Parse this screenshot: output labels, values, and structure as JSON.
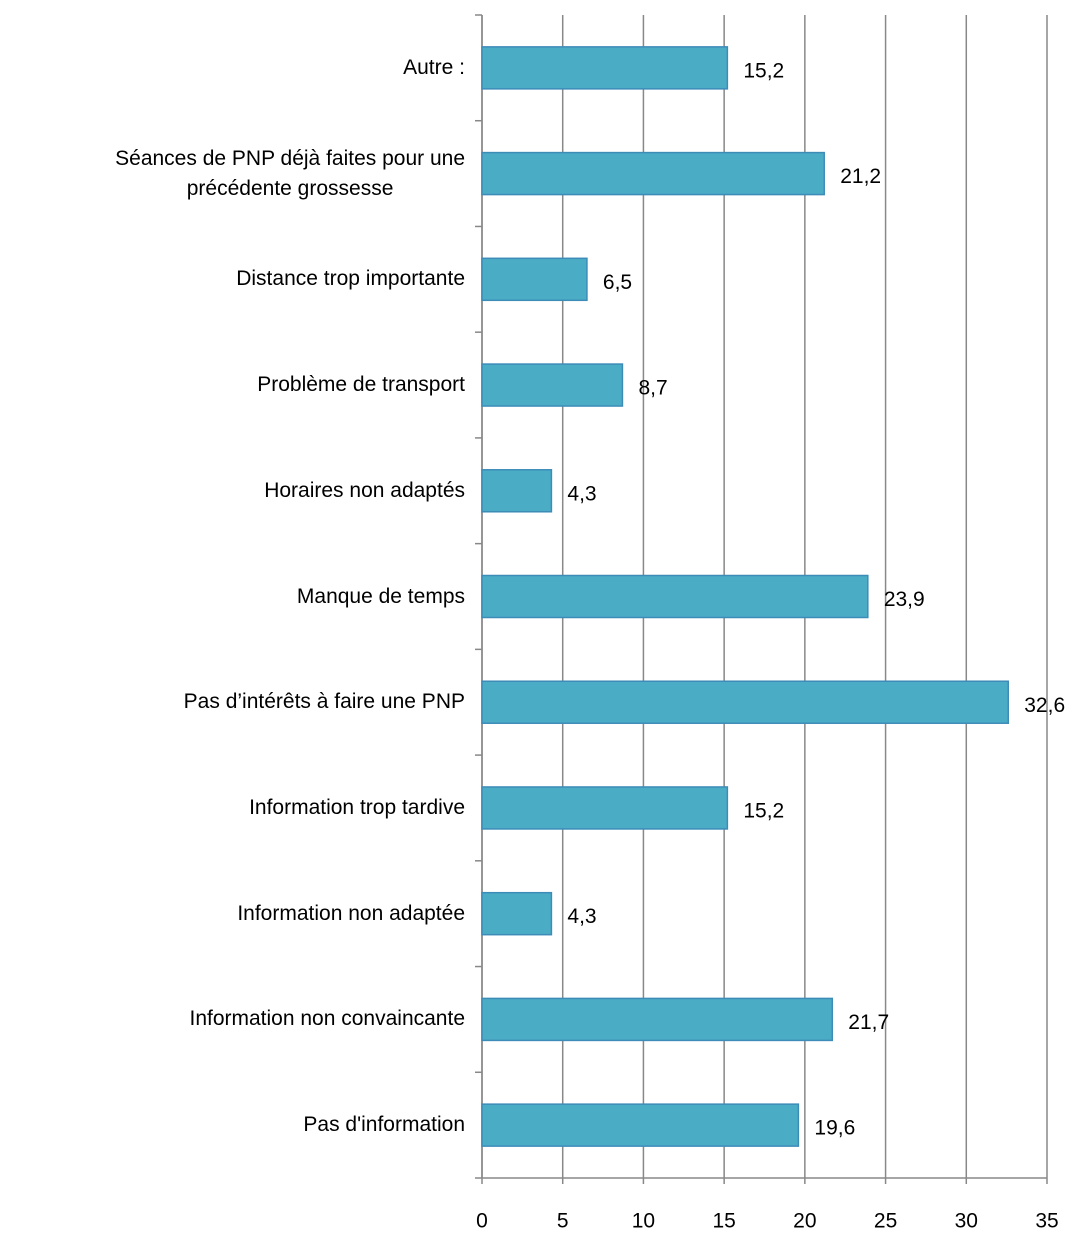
{
  "chart_data": {
    "type": "bar",
    "orientation": "horizontal",
    "categories": [
      "Autre :",
      "Séances de PNP déjà faites pour une\nprécédente grossesse",
      "Distance trop importante",
      "Problème de transport",
      "Horaires non adaptés",
      "Manque de temps",
      "Pas d’intérêts à faire une PNP",
      "Information trop tardive",
      "Information non adaptée",
      "Information non convaincante",
      "Pas d'information"
    ],
    "values": [
      15.2,
      21.2,
      6.5,
      8.7,
      4.3,
      23.9,
      32.6,
      15.2,
      4.3,
      21.7,
      19.6
    ],
    "value_labels": [
      "15,2",
      "21,2",
      "6,5",
      "8,7",
      "4,3",
      "23,9",
      "32,6",
      "15,2",
      "4,3",
      "21,7",
      "19,6"
    ],
    "color": "#4bacc6",
    "xlim": [
      0,
      35
    ],
    "xticks": [
      0,
      5,
      10,
      15,
      20,
      25,
      30,
      35
    ],
    "grid": true
  }
}
